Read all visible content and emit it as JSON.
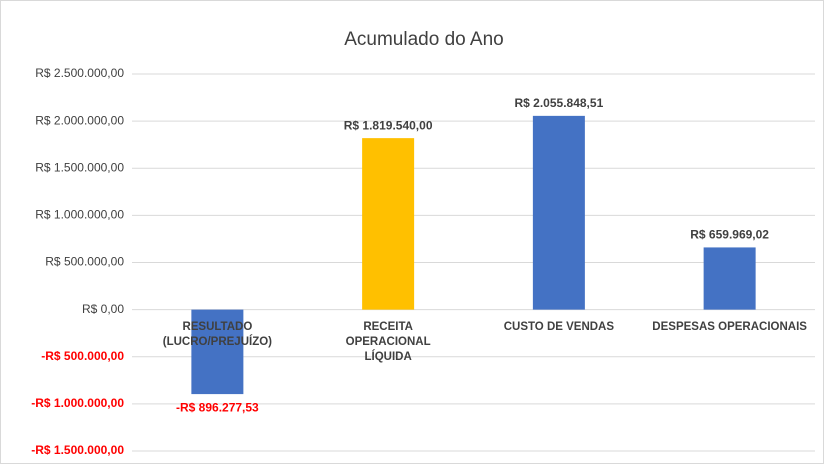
{
  "chart_data": {
    "type": "bar",
    "title": "Acumulado do Ano",
    "categories": [
      "RESULTADO (LUCRO/PREJUÍZO)",
      "RECEITA OPERACIONAL LÍQUIDA",
      "CUSTO DE VENDAS",
      "DESPESAS OPERACIONAIS"
    ],
    "values": [
      -896277.53,
      1819540.0,
      2055848.51,
      659969.02
    ],
    "value_labels": [
      "-R$ 896.277,53",
      "R$ 1.819.540,00",
      "R$ 2.055.848,51",
      "R$ 659.969,02"
    ],
    "colors": [
      "#4472c4",
      "#ffc000",
      "#4472c4",
      "#4472c4"
    ],
    "ylim": [
      -1500000,
      2500000
    ],
    "yticks": [
      {
        "value": -1500000,
        "label": "-R$ 1.500.000,00"
      },
      {
        "value": -1000000,
        "label": "-R$ 1.000.000,00"
      },
      {
        "value": -500000,
        "label": "-R$ 500.000,00"
      },
      {
        "value": 0,
        "label": "R$ 0,00"
      },
      {
        "value": 500000,
        "label": "R$ 500.000,00"
      },
      {
        "value": 1000000,
        "label": "R$ 1.000.000,00"
      },
      {
        "value": 1500000,
        "label": "R$ 1.500.000,00"
      },
      {
        "value": 2000000,
        "label": "R$ 2.000.000,00"
      },
      {
        "value": 2500000,
        "label": "R$ 2.500.000,00"
      }
    ],
    "grid": true
  }
}
